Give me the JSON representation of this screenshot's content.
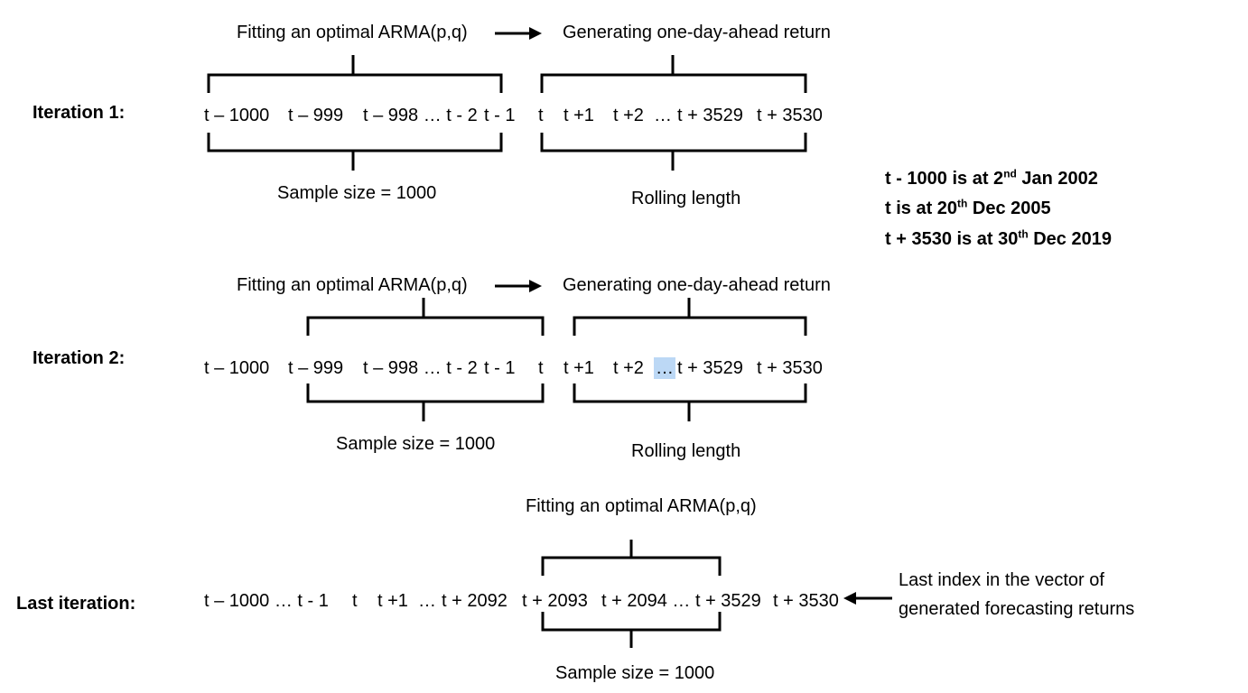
{
  "labels": {
    "fitting": "Fitting an optimal ARMA(p,q)",
    "generating": "Generating one-day-ahead return",
    "sample_size": "Sample size = 1000",
    "rolling_length": "Rolling length",
    "last_index_line1": "Last index in the vector of",
    "last_index_line2": "generated forecasting returns"
  },
  "iterations": [
    {
      "label": "Iteration 1:"
    },
    {
      "label": "Iteration 2:"
    },
    {
      "label": "Last iteration:"
    }
  ],
  "sequence_row1": {
    "a": "t – 1000",
    "b": "t – 999",
    "c": "t – 998 … t - 2",
    "d": "t - 1",
    "e": "t",
    "f": "t +1",
    "g": "t +2",
    "h": "…",
    "i": "t + 3529",
    "j": "t + 3530"
  },
  "sequence_row2": {
    "a": "t – 1000",
    "b": "t – 999",
    "c": "t – 998 … t - 2",
    "d": "t - 1",
    "e": "t",
    "f": "t +1",
    "g": "t +2",
    "h": "…",
    "i": "t + 3529",
    "j": "t + 3530"
  },
  "sequence_row3": {
    "a": "t – 1000 … t - 1",
    "b": "t",
    "c": "t +1",
    "d": "…",
    "e": "t + 2092",
    "f": "t + 2093",
    "g": "t + 2094 … t + 3529",
    "h": "t + 3530"
  },
  "notes": [
    {
      "pre": "t - 1000 is at 2",
      "sup": "nd",
      "post": " Jan 2002"
    },
    {
      "pre": "t is at 20",
      "sup": "th",
      "post": " Dec 2005"
    },
    {
      "pre": "t + 3530 is at 30",
      "sup": "th",
      "post": " Dec 2019"
    }
  ],
  "highlight_color": "#bcd8f5"
}
